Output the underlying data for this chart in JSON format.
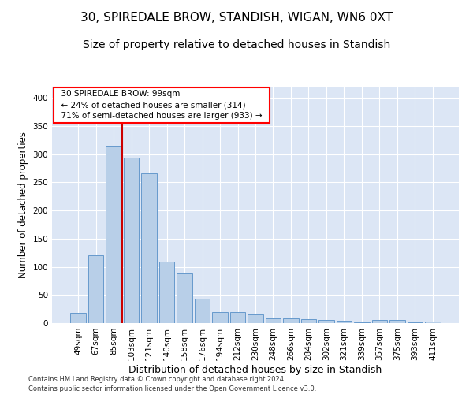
{
  "title": "30, SPIREDALE BROW, STANDISH, WIGAN, WN6 0XT",
  "subtitle": "Size of property relative to detached houses in Standish",
  "xlabel": "Distribution of detached houses by size in Standish",
  "ylabel": "Number of detached properties",
  "footer_line1": "Contains HM Land Registry data © Crown copyright and database right 2024.",
  "footer_line2": "Contains public sector information licensed under the Open Government Licence v3.0.",
  "categories": [
    "49sqm",
    "67sqm",
    "85sqm",
    "103sqm",
    "121sqm",
    "140sqm",
    "158sqm",
    "176sqm",
    "194sqm",
    "212sqm",
    "230sqm",
    "248sqm",
    "266sqm",
    "284sqm",
    "302sqm",
    "321sqm",
    "339sqm",
    "357sqm",
    "375sqm",
    "393sqm",
    "411sqm"
  ],
  "values": [
    18,
    120,
    315,
    294,
    266,
    109,
    88,
    44,
    20,
    20,
    15,
    9,
    8,
    7,
    6,
    4,
    1,
    5,
    5,
    1,
    3
  ],
  "bar_color": "#b8cfe8",
  "bar_edge_color": "#6699cc",
  "vline_color": "#cc0000",
  "vline_pos": 2.5,
  "annotation_text": "  30 SPIREDALE BROW: 99sqm  \n  ← 24% of detached houses are smaller (314)  \n  71% of semi-detached houses are larger (933) →  ",
  "ylim": [
    0,
    420
  ],
  "yticks": [
    0,
    50,
    100,
    150,
    200,
    250,
    300,
    350,
    400
  ],
  "background_color": "#dce6f5",
  "grid_color": "#ffffff",
  "title_fontsize": 11,
  "subtitle_fontsize": 10,
  "xlabel_fontsize": 9,
  "ylabel_fontsize": 8.5,
  "tick_fontsize": 7.5,
  "annotation_fontsize": 7.5
}
